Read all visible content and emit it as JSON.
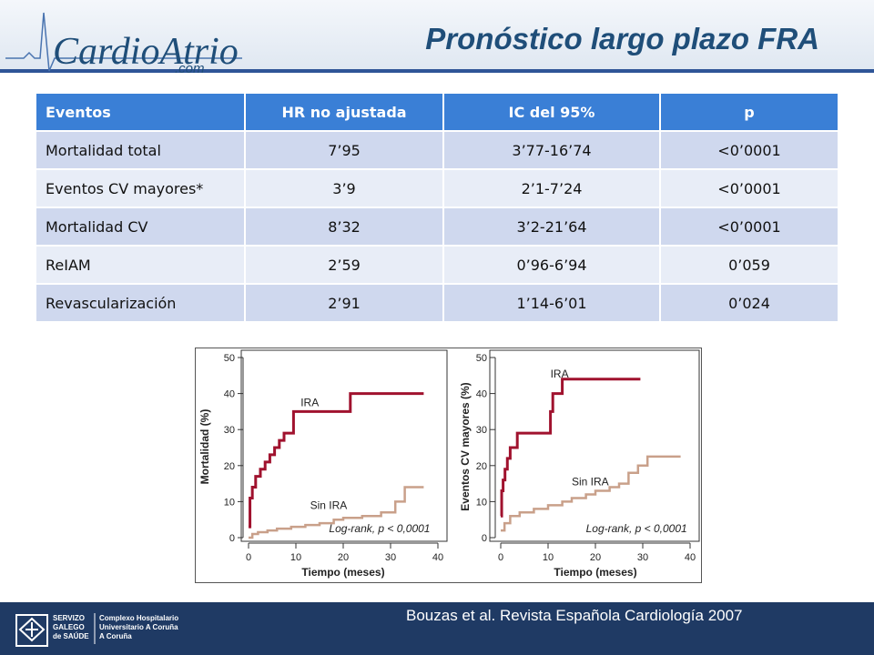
{
  "header": {
    "logo_text": "CardioAtrio",
    "logo_sub": ".com",
    "title": "Pronóstico largo plazo FRA"
  },
  "table": {
    "headers": [
      "Eventos",
      "HR no ajustada",
      "IC del 95%",
      "p"
    ],
    "rows": [
      [
        "Mortalidad total",
        "7’95",
        "3’77-16’74",
        "<0’0001"
      ],
      [
        "Eventos CV mayores*",
        "3’9",
        "2’1-7’24",
        "<0’0001"
      ],
      [
        "Mortalidad CV",
        "8’32",
        "3’2-21’64",
        "<0’0001"
      ],
      [
        "ReIAM",
        "2’59",
        "0’96-6’94",
        "0’059"
      ],
      [
        "Revascularización",
        "2’91",
        "1’14-6’01",
        "0’024"
      ]
    ]
  },
  "chart_data": [
    {
      "type": "line",
      "ylabel": "Mortalidad (%)",
      "xlabel": "Tiempo (meses)",
      "xlim": [
        0,
        40
      ],
      "ylim": [
        0,
        50
      ],
      "xticks": [
        "0",
        "10",
        "20",
        "30",
        "40"
      ],
      "yticks": [
        "0",
        "10",
        "20",
        "30",
        "40",
        "50"
      ],
      "series": [
        {
          "name": "IRA",
          "color": "#a0122e",
          "x": [
            0,
            0.3,
            0.8,
            1.5,
            2.5,
            3.5,
            4.5,
            5.5,
            6.5,
            7.5,
            9.5,
            16.5,
            21.5,
            37
          ],
          "y": [
            3,
            11,
            14,
            17,
            19,
            21,
            23,
            25,
            27,
            29,
            35,
            35,
            40,
            40
          ]
        },
        {
          "name": "Sin IRA",
          "color": "#c9a08a",
          "x": [
            0,
            0.8,
            2,
            4,
            6,
            9,
            12,
            15,
            18,
            20,
            24,
            28,
            31,
            33,
            37
          ],
          "y": [
            0,
            1,
            1.5,
            2,
            2.5,
            3,
            3.5,
            4,
            5,
            5.5,
            6,
            7,
            10,
            14,
            14
          ]
        }
      ],
      "annotation": "Log-rank,  p < 0,0001"
    },
    {
      "type": "line",
      "ylabel": "Eventos CV mayores (%)",
      "xlabel": "Tiempo (meses)",
      "xlim": [
        0,
        40
      ],
      "ylim": [
        0,
        50
      ],
      "xticks": [
        "0",
        "10",
        "20",
        "30",
        "40"
      ],
      "yticks": [
        "0",
        "10",
        "20",
        "30",
        "40",
        "50"
      ],
      "series": [
        {
          "name": "IRA",
          "color": "#a0122e",
          "x": [
            0,
            0.2,
            0.5,
            0.9,
            1.4,
            2,
            3.5,
            8.5,
            10.5,
            11,
            12,
            13,
            29.5
          ],
          "y": [
            6,
            13,
            16,
            19,
            22,
            25,
            29,
            29,
            35,
            40,
            40,
            44,
            44
          ]
        },
        {
          "name": "Sin IRA",
          "color": "#c9a08a",
          "x": [
            0,
            0.8,
            2,
            4,
            7,
            10,
            13,
            15,
            18,
            20,
            23,
            25,
            27,
            29,
            31,
            38
          ],
          "y": [
            2,
            4,
            6,
            7,
            8,
            9,
            10,
            11,
            12,
            13,
            14,
            15,
            18,
            20,
            22.5,
            22.5
          ]
        }
      ],
      "annotation": "Log-rank,  p < 0,0001"
    }
  ],
  "footer": {
    "org_left": "SERVIZO GALEGO de SAÚDE",
    "org_right": "Complexo Hospitalario Universitario A Coruña A Coruña",
    "citation": "Bouzas et al. Revista Española Cardiología 2007"
  }
}
